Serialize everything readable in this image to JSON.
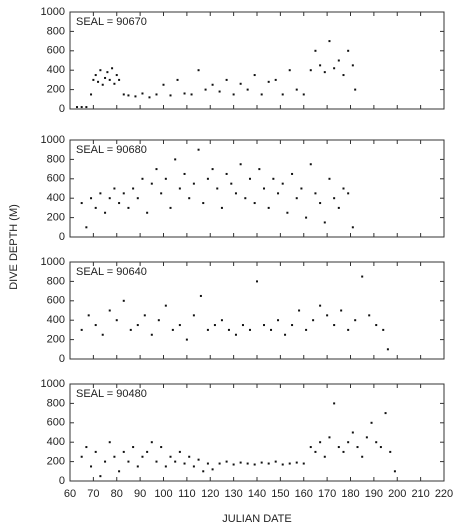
{
  "chart_data": [
    {
      "type": "scatter",
      "title": "SEAL = 90670",
      "color": "#111",
      "x": [
        63,
        65,
        67,
        69,
        70,
        71,
        72,
        73,
        74,
        75,
        76,
        77,
        78,
        79,
        80,
        81,
        83,
        85,
        88,
        91,
        94,
        97,
        100,
        103,
        106,
        109,
        112,
        115,
        118,
        121,
        124,
        127,
        130,
        133,
        136,
        139,
        142,
        145,
        148,
        151,
        154,
        157,
        160,
        163,
        165,
        167,
        169,
        171,
        173,
        175,
        177,
        179,
        181,
        182
      ],
      "values": [
        20,
        20,
        20,
        150,
        300,
        350,
        280,
        400,
        250,
        320,
        380,
        300,
        420,
        260,
        350,
        300,
        150,
        140,
        130,
        160,
        120,
        150,
        250,
        140,
        300,
        160,
        150,
        400,
        200,
        250,
        180,
        300,
        150,
        260,
        200,
        350,
        150,
        280,
        300,
        150,
        400,
        200,
        150,
        400,
        600,
        450,
        380,
        700,
        420,
        500,
        350,
        600,
        450,
        200
      ],
      "xlim": [
        60,
        220
      ],
      "ylim": [
        0,
        1000
      ],
      "yticks": [
        0,
        200,
        400,
        600,
        800,
        1000
      ]
    },
    {
      "type": "scatter",
      "title": "SEAL = 90680",
      "color": "#111",
      "ylabel": "DIVE DEPTH (M)",
      "x": [
        65,
        67,
        69,
        71,
        73,
        75,
        77,
        79,
        81,
        83,
        85,
        87,
        89,
        91,
        93,
        95,
        97,
        99,
        101,
        103,
        105,
        107,
        109,
        111,
        113,
        115,
        117,
        119,
        121,
        123,
        125,
        127,
        129,
        131,
        133,
        135,
        137,
        139,
        141,
        143,
        145,
        147,
        149,
        151,
        153,
        155,
        157,
        159,
        161,
        163,
        165,
        167,
        169,
        171,
        173,
        175,
        177,
        179,
        181
      ],
      "values": [
        350,
        100,
        400,
        300,
        450,
        250,
        400,
        500,
        350,
        450,
        300,
        500,
        400,
        600,
        250,
        550,
        700,
        450,
        600,
        300,
        800,
        500,
        650,
        400,
        550,
        900,
        350,
        600,
        700,
        500,
        300,
        650,
        550,
        450,
        750,
        400,
        600,
        350,
        700,
        500,
        300,
        600,
        450,
        550,
        250,
        650,
        400,
        500,
        200,
        750,
        450,
        350,
        150,
        600,
        400,
        300,
        500,
        450,
        100
      ],
      "xlim": [
        60,
        220
      ],
      "ylim": [
        0,
        1000
      ],
      "yticks": [
        0,
        200,
        400,
        600,
        800,
        1000
      ]
    },
    {
      "type": "scatter",
      "title": "SEAL = 90640",
      "color": "#111",
      "x": [
        65,
        68,
        71,
        74,
        77,
        80,
        83,
        86,
        89,
        92,
        95,
        98,
        101,
        104,
        107,
        110,
        113,
        116,
        119,
        122,
        125,
        128,
        131,
        134,
        137,
        140,
        143,
        146,
        149,
        152,
        155,
        158,
        161,
        164,
        167,
        170,
        173,
        176,
        179,
        182,
        185,
        188,
        191,
        194,
        196
      ],
      "values": [
        300,
        450,
        350,
        250,
        500,
        400,
        600,
        300,
        350,
        450,
        250,
        400,
        550,
        300,
        350,
        200,
        450,
        650,
        300,
        350,
        400,
        300,
        250,
        350,
        300,
        800,
        350,
        300,
        400,
        250,
        350,
        500,
        300,
        400,
        550,
        450,
        350,
        500,
        300,
        400,
        850,
        450,
        350,
        300,
        100
      ],
      "xlim": [
        60,
        220
      ],
      "ylim": [
        0,
        1000
      ],
      "yticks": [
        0,
        200,
        400,
        600,
        800,
        1000
      ]
    },
    {
      "type": "scatter",
      "title": "SEAL = 90480",
      "color": "#111",
      "xlabel": "JULIAN DATE",
      "x": [
        65,
        67,
        69,
        71,
        73,
        75,
        77,
        79,
        81,
        83,
        85,
        87,
        89,
        91,
        93,
        95,
        97,
        99,
        101,
        103,
        105,
        107,
        109,
        111,
        113,
        115,
        117,
        119,
        121,
        124,
        127,
        130,
        133,
        136,
        139,
        142,
        145,
        148,
        151,
        154,
        157,
        160,
        163,
        165,
        167,
        169,
        171,
        173,
        175,
        177,
        179,
        181,
        183,
        185,
        187,
        189,
        191,
        193,
        195,
        197,
        199
      ],
      "values": [
        250,
        350,
        150,
        300,
        50,
        200,
        400,
        250,
        100,
        300,
        200,
        350,
        150,
        250,
        300,
        400,
        200,
        350,
        150,
        250,
        200,
        300,
        180,
        250,
        150,
        220,
        100,
        180,
        120,
        180,
        200,
        170,
        190,
        180,
        170,
        190,
        180,
        200,
        170,
        180,
        190,
        180,
        350,
        300,
        400,
        250,
        450,
        800,
        350,
        300,
        400,
        500,
        350,
        250,
        450,
        600,
        400,
        350,
        700,
        300,
        100
      ],
      "xlim": [
        60,
        220
      ],
      "ylim": [
        0,
        1000
      ],
      "yticks": [
        0,
        200,
        400,
        600,
        800,
        1000
      ],
      "xticks": [
        60,
        70,
        80,
        90,
        100,
        110,
        120,
        130,
        140,
        150,
        160,
        170,
        180,
        190,
        200,
        210,
        220
      ]
    }
  ]
}
